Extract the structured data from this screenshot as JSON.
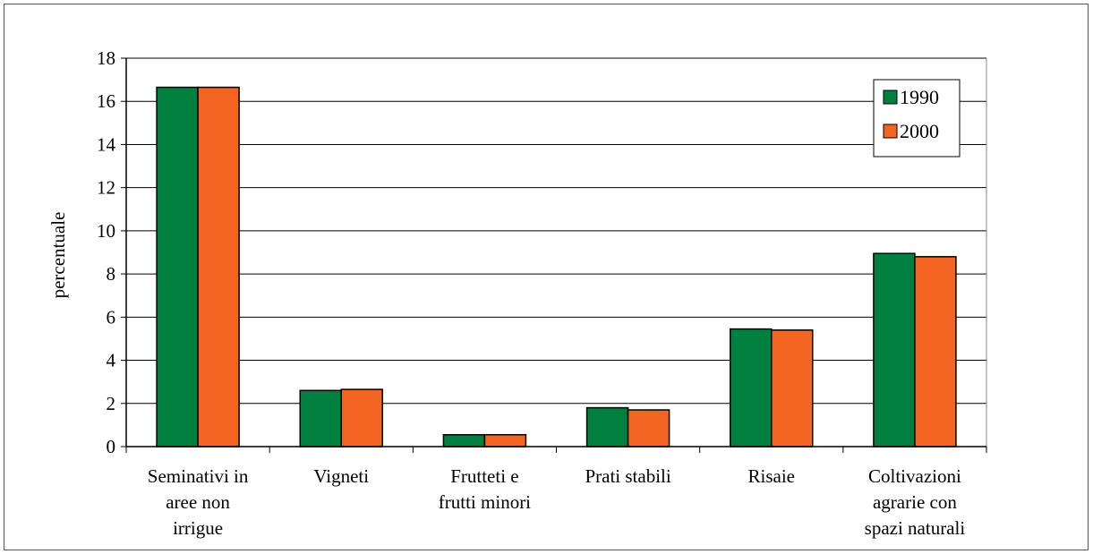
{
  "chart_data": {
    "type": "bar",
    "title": "",
    "xlabel": "",
    "ylabel": "percentuale",
    "ylim": [
      0,
      18
    ],
    "yticks": [
      "0",
      "2",
      "4",
      "6",
      "8",
      "10",
      "12",
      "14",
      "16",
      "18"
    ],
    "grid": true,
    "legend_position": "top-right",
    "categories": [
      [
        "Seminativi in",
        "aree non",
        "irrigue"
      ],
      [
        "Vigneti"
      ],
      [
        "Frutteti e",
        "frutti minori"
      ],
      [
        "Prati stabili"
      ],
      [
        "Risaie"
      ],
      [
        "Coltivazioni",
        "agrarie con",
        "spazi naturali"
      ]
    ],
    "series": [
      {
        "name": "1990",
        "color": "#00803f",
        "values": [
          16.65,
          2.6,
          0.55,
          1.8,
          5.45,
          8.95
        ]
      },
      {
        "name": "2000",
        "color": "#f26522",
        "values": [
          16.65,
          2.65,
          0.55,
          1.7,
          5.4,
          8.8
        ]
      }
    ]
  }
}
